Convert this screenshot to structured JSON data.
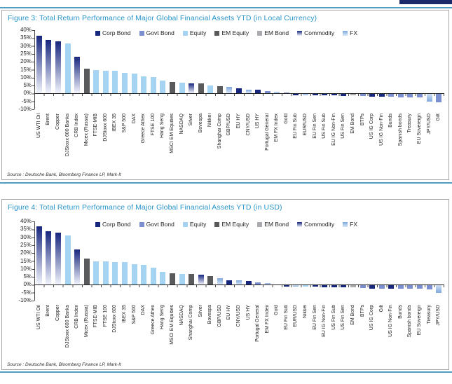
{
  "page": {
    "header_block_color": "#1b2a6b",
    "rule_color": "#4f9fc0"
  },
  "colors": {
    "corp": "#18277e",
    "govt": "#7b8fd0",
    "equity": "#a5d3f2",
    "emeq": "#595a5c",
    "embond": "#a8aaad",
    "fx": "#7fa8dc",
    "title": "#2a95c8"
  },
  "legend": [
    {
      "label": "Corp Bond",
      "group": "corp"
    },
    {
      "label": "Govt Bond",
      "group": "govt"
    },
    {
      "label": "Equity",
      "group": "equity"
    },
    {
      "label": "EM Equity",
      "group": "emeq"
    },
    {
      "label": "EM Bond",
      "group": "embond"
    },
    {
      "label": "Commodity",
      "group": "commodity"
    },
    {
      "label": "FX",
      "group": "fx"
    }
  ],
  "figures": [
    {
      "title": "Figure 3: Total Return Performance of Major Global Financial Assets YTD (in Local Currency)",
      "source": "Source : Deutsche Bank, Bloomberg Finance LP, Mark-It"
    },
    {
      "title": "Figure 4: Total Return Performance of Major Global Financial Assets YTD (in USD)",
      "source": "Source : Deutsche Bank, Bloomberg Finance LP, Mark-It"
    }
  ],
  "chart_data": [
    {
      "type": "bar",
      "title": "Total Return Performance of Major Global Financial Assets YTD (in Local Currency)",
      "xlabel": "",
      "ylabel": "",
      "unit": "%",
      "ylim": [
        -10,
        40
      ],
      "ytick_step": 5,
      "ytick_labels": [
        "40%",
        "35%",
        "30%",
        "25%",
        "20%",
        "15%",
        "10%",
        "5%",
        "0%",
        "-5%",
        "-10%"
      ],
      "grid": false,
      "legend_position": "top",
      "categories": [
        "US WTI Oil",
        "Brent",
        "Copper",
        "DJStoxx 600 Banks",
        "CRB Index",
        "Micex (Russia)",
        "FTSE-MIB",
        "DJStoxx 600",
        "IBEX 35",
        "S&P 500",
        "DAX",
        "Greece Athex",
        "FTSE 100",
        "Hang Seng",
        "MSCI EM Equities",
        "NASDAQ",
        "Silver",
        "Bovespa",
        "Nikkei",
        "Shanghai Comp",
        "GBP/USD",
        "EU HY",
        "CNY/USD",
        "US HY",
        "Portugal General",
        "EM FX Index",
        "Gold",
        "EU Fin Sub",
        "EUR/USD",
        "EU Fin Sen",
        "US Fin Sub",
        "EU IG Non-Fin",
        "US Fin Sen",
        "EM Bond",
        "BTPs",
        "US IG Corp",
        "US IG Non-Fin",
        "Bunds",
        "Spanish bonds",
        "Treasury",
        "EU Sovereign",
        "JPY/USD",
        "Gilt"
      ],
      "values": [
        36.5,
        34,
        33,
        31.5,
        23,
        15.5,
        15,
        14.2,
        14.2,
        12.8,
        12.4,
        11,
        10.5,
        8,
        7.2,
        7,
        6.2,
        6.2,
        5.2,
        4.6,
        4.0,
        3.2,
        2.6,
        2.2,
        1.6,
        1.2,
        0.4,
        -0.6,
        -0.7,
        -0.8,
        -0.9,
        -0.9,
        -1.0,
        -0.9,
        -1.3,
        -1.8,
        -1.8,
        -1.8,
        -2.0,
        -2.0,
        -2.0,
        -4.5,
        -5.0
      ],
      "groups": [
        "commodity",
        "commodity",
        "commodity",
        "equity",
        "commodity",
        "emeq",
        "equity",
        "equity",
        "equity",
        "equity",
        "equity",
        "equity",
        "equity",
        "equity",
        "emeq",
        "equity",
        "commodity",
        "emeq",
        "equity",
        "emeq",
        "fx",
        "corp",
        "fx",
        "corp",
        "govt",
        "fx",
        "commodity",
        "corp",
        "fx",
        "corp",
        "corp",
        "corp",
        "corp",
        "embond",
        "govt",
        "corp",
        "corp",
        "govt",
        "govt",
        "govt",
        "govt",
        "fx",
        "govt"
      ]
    },
    {
      "type": "bar",
      "title": "Total Return Performance of Major Global Financial Assets YTD (in USD)",
      "xlabel": "",
      "ylabel": "",
      "unit": "%",
      "ylim": [
        -10,
        40
      ],
      "ytick_step": 5,
      "ytick_labels": [
        "40%",
        "35%",
        "30%",
        "25%",
        "20%",
        "15%",
        "10%",
        "5%",
        "0%",
        "-5%",
        "-10%"
      ],
      "grid": false,
      "legend_position": "top",
      "categories": [
        "US WTI Oil",
        "Brent",
        "Copper",
        "DJStoxx 600 Banks",
        "CRB Index",
        "Micex (Russia)",
        "FTSE-MIB",
        "FTSE 100",
        "DJStoxx 600",
        "IBEX 35",
        "S&P 500",
        "DAX",
        "Greece Athex",
        "Hang Seng",
        "MSCI EM Equities",
        "NASDAQ",
        "Shanghai Comp",
        "Silver",
        "Bovespa",
        "GBP/USD",
        "EU HY",
        "CNY/USD",
        "US HY",
        "Portugal General",
        "EM FX Index",
        "Gold",
        "EU Fin Sub",
        "EUR/USD",
        "Nikkei",
        "EU Fin Sen",
        "EU IG Non-Fin",
        "US Fin Sub",
        "US Fin Sen",
        "EM Bond",
        "BTPs",
        "US IG Corp",
        "Gilt",
        "US IG Non-Fin",
        "Bunds",
        "Spanish bonds",
        "EU Sovereign",
        "Treasury",
        "JPY/USD"
      ],
      "values": [
        37,
        34,
        33,
        31,
        22.5,
        16.5,
        14.7,
        14.6,
        14.3,
        14.2,
        12.8,
        12.6,
        10.8,
        8.2,
        7.2,
        7.0,
        6.8,
        6.3,
        5.4,
        4.2,
        3.0,
        2.7,
        2.3,
        1.5,
        1.1,
        0.3,
        -0.5,
        -0.7,
        -0.8,
        -0.9,
        -1.0,
        -1.1,
        -1.2,
        -1.1,
        -1.4,
        -1.9,
        -2.0,
        -2.0,
        -2.0,
        -2.2,
        -2.2,
        -2.3,
        -4.7
      ],
      "groups": [
        "commodity",
        "commodity",
        "commodity",
        "equity",
        "commodity",
        "emeq",
        "equity",
        "equity",
        "equity",
        "equity",
        "equity",
        "equity",
        "equity",
        "equity",
        "emeq",
        "equity",
        "emeq",
        "commodity",
        "emeq",
        "fx",
        "corp",
        "fx",
        "corp",
        "govt",
        "fx",
        "commodity",
        "corp",
        "fx",
        "equity",
        "corp",
        "corp",
        "corp",
        "corp",
        "embond",
        "govt",
        "corp",
        "govt",
        "corp",
        "govt",
        "govt",
        "govt",
        "govt",
        "fx"
      ]
    }
  ]
}
